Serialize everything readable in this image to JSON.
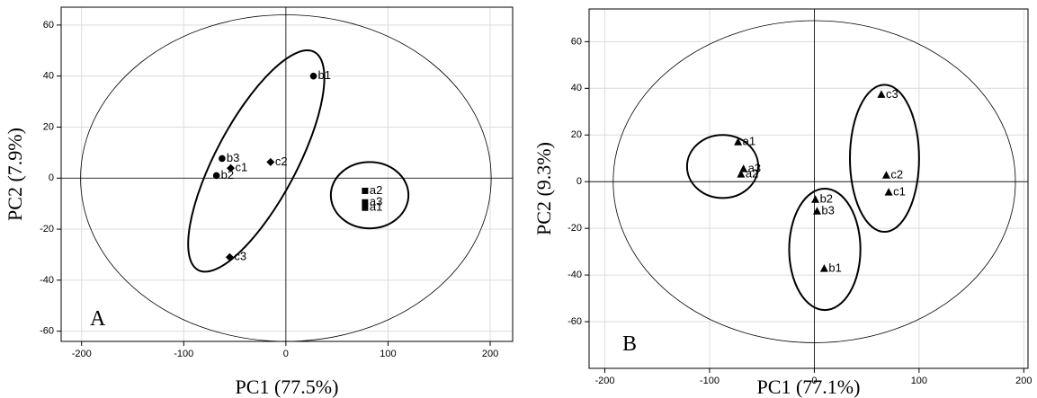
{
  "chart_data": [
    {
      "type": "scatter",
      "panel_label": "A",
      "x_label": "PC1 (77.5%)",
      "y_label": "PC2 (7.9%)",
      "xlim": [
        -220,
        222
      ],
      "ylim": [
        -64,
        67
      ],
      "xticks": [
        -200,
        -100,
        0,
        100,
        200
      ],
      "yticks": [
        -60,
        -40,
        -20,
        0,
        20,
        40,
        60
      ],
      "grid": true,
      "series": [
        {
          "marker": "square",
          "color": "#000000",
          "labels": [
            "a2",
            "a3",
            "a1"
          ],
          "x": [
            77.5,
            77.5,
            77.5
          ],
          "values": [
            -5,
            -9.5,
            -11.6
          ]
        },
        {
          "marker": "circle",
          "color": "#000000",
          "labels": [
            "b1",
            "b3",
            "b2"
          ],
          "x": [
            27,
            -62.5,
            -68
          ],
          "values": [
            40,
            7.7,
            1
          ]
        },
        {
          "marker": "diamond",
          "color": "#000000",
          "labels": [
            "c1",
            "c2",
            "c3"
          ],
          "x": [
            -54,
            -15,
            -55
          ],
          "values": [
            3.9,
            6.3,
            -31
          ]
        }
      ],
      "ellipses": [
        {
          "cx": 0,
          "cy": 0,
          "rx": 201,
          "ry": 64,
          "angle": 0,
          "width": 0.8
        },
        {
          "cx": -29,
          "cy": 6.7,
          "rx": 121,
          "ry": 15.8,
          "angle": -62,
          "width": 2
        },
        {
          "cx": 82,
          "cy": -6.7,
          "rx": 38,
          "ry": 13,
          "angle": 0,
          "width": 2
        }
      ]
    },
    {
      "type": "scatter",
      "panel_label": "B",
      "x_label": "PC1 (77.1%)",
      "y_label": "PC2 (9.3%)",
      "xlim": [
        -215,
        204
      ],
      "ylim": [
        -80,
        74
      ],
      "xticks": [
        -200,
        -100,
        0,
        100,
        200
      ],
      "yticks": [
        -60,
        -40,
        -20,
        0,
        20,
        40,
        60
      ],
      "grid": true,
      "series": [
        {
          "marker": "triangle",
          "color": "#000000",
          "labels": [
            "a1",
            "a3",
            "a2",
            "c3",
            "c2",
            "c1",
            "b2",
            "b3",
            "b1"
          ],
          "x": [
            -72.8,
            -67.6,
            -70,
            64,
            68.7,
            71,
            1,
            2.6,
            9.4
          ],
          "values": [
            16.9,
            5.4,
            3.1,
            37.3,
            2.7,
            -4.6,
            -7.7,
            -12.7,
            -37.3
          ]
        }
      ],
      "ellipses": [
        {
          "cx": 0,
          "cy": 0,
          "rx": 192,
          "ry": 69,
          "angle": 0,
          "width": 0.8
        },
        {
          "cx": -87.5,
          "cy": 6.5,
          "rx": 34,
          "ry": 13.5,
          "angle": 0,
          "width": 2
        },
        {
          "cx": 10,
          "cy": -29,
          "rx": 34,
          "ry": 26,
          "angle": 0,
          "width": 2
        },
        {
          "cx": 67,
          "cy": 10,
          "rx": 33,
          "ry": 31.5,
          "angle": 0,
          "width": 2
        }
      ]
    }
  ]
}
